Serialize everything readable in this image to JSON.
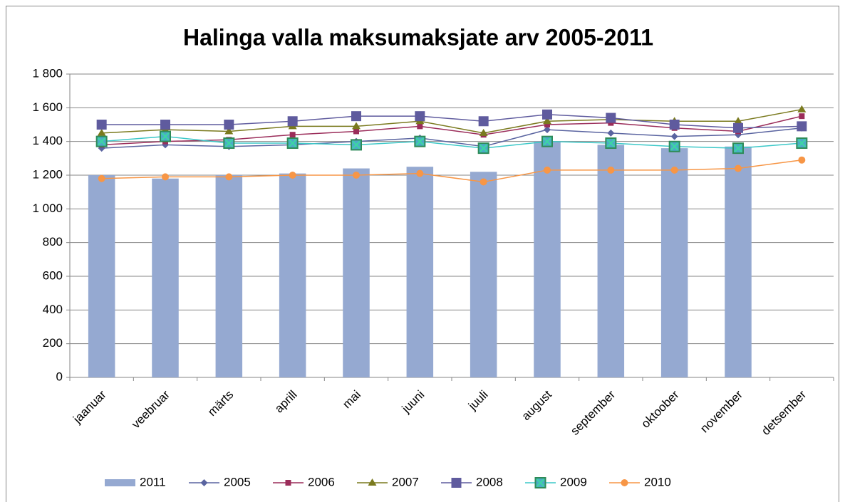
{
  "chart_data": {
    "type": "combo",
    "title": "Halinga valla maksumaksjate arv 2005-2011",
    "categories": [
      "jaanuar",
      "veebruar",
      "märts",
      "aprill",
      "mai",
      "juuni",
      "juuli",
      "august",
      "september",
      "oktoober",
      "november",
      "detsember"
    ],
    "ylim": [
      0,
      1800
    ],
    "yticks": [
      0,
      200,
      400,
      600,
      800,
      {
        "value": 1000,
        "label": "1 000"
      },
      {
        "value": 1200,
        "label": "1 200"
      },
      {
        "value": 1400,
        "label": "1 400"
      },
      {
        "value": 1600,
        "label": "1 600"
      },
      {
        "value": 1800,
        "label": "1 800"
      }
    ],
    "grid": true,
    "legend": "bottom",
    "series": [
      {
        "name": "2011",
        "type": "bar",
        "color": "#95a9d1",
        "values": [
          1200,
          1180,
          1200,
          1210,
          1240,
          1250,
          1220,
          1400,
          1380,
          1360,
          1370,
          null
        ]
      },
      {
        "name": "2005",
        "type": "line",
        "marker": "diamond",
        "color": "#5a64a0",
        "values": [
          1360,
          1380,
          1370,
          1380,
          1400,
          1420,
          1370,
          1470,
          1450,
          1430,
          1440,
          1480
        ]
      },
      {
        "name": "2006",
        "type": "line",
        "marker": "square",
        "color": "#9b2d5a",
        "values": [
          1380,
          1400,
          1410,
          1440,
          1460,
          1490,
          1440,
          1500,
          1510,
          1480,
          1460,
          1550
        ]
      },
      {
        "name": "2007",
        "type": "line",
        "marker": "triangle",
        "color": "#7a7a1e",
        "values": [
          1450,
          1470,
          1460,
          1490,
          1490,
          1520,
          1450,
          1520,
          1530,
          1520,
          1520,
          1590
        ]
      },
      {
        "name": "2008",
        "type": "line",
        "marker": "bigsquare",
        "color": "#5f5b9e",
        "values": [
          1500,
          1500,
          1500,
          1520,
          1550,
          1550,
          1520,
          1560,
          1540,
          1500,
          1480,
          1490
        ]
      },
      {
        "name": "2009",
        "type": "line",
        "marker": "xsquare",
        "color": "#3cc8c8",
        "values": [
          1400,
          1430,
          1390,
          1390,
          1380,
          1400,
          1360,
          1400,
          1390,
          1370,
          1360,
          1390
        ]
      },
      {
        "name": "2010",
        "type": "line",
        "marker": "circle",
        "color": "#f79646",
        "values": [
          1180,
          1190,
          1190,
          1200,
          1200,
          1210,
          1160,
          1230,
          1230,
          1230,
          1240,
          1290
        ]
      }
    ]
  }
}
